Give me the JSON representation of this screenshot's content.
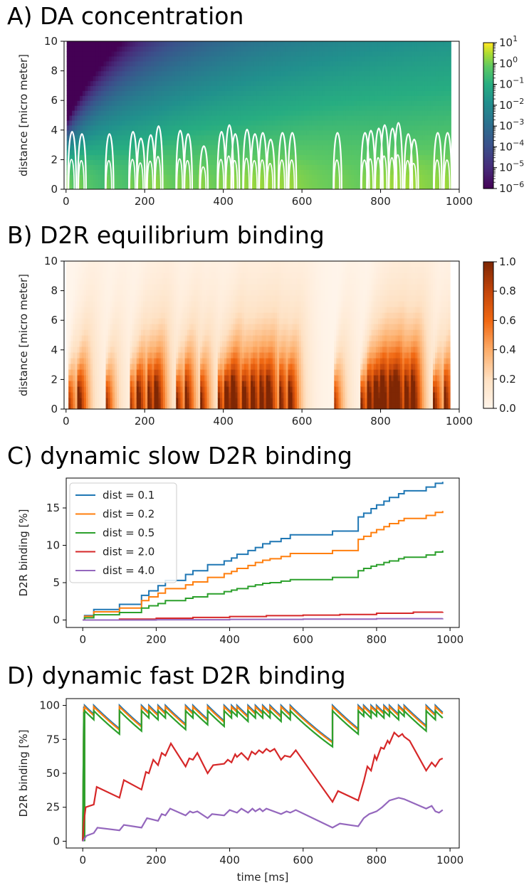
{
  "chart_data": [
    {
      "type": "heatmap",
      "title": "A) DA concentration",
      "xlabel": "",
      "ylabel": "distance [micro meter]",
      "xlim": [
        -5,
        1000
      ],
      "ylim": [
        0,
        10
      ],
      "x_ticks": [
        "0",
        "200",
        "400",
        "600",
        "800",
        "1000"
      ],
      "y_ticks": [
        "0",
        "2",
        "4",
        "6",
        "8",
        "10"
      ],
      "colormap": "viridis",
      "colorbar_scale": "log",
      "colorbar_ticks": [
        "10^1",
        "10^0",
        "10^-1",
        "10^-2",
        "10^-3",
        "10^-4",
        "10^-5",
        "10^-6"
      ],
      "contour_color": "#ffffff",
      "data_end": 980,
      "release_times": [
        5,
        30,
        100,
        160,
        180,
        205,
        225,
        280,
        300,
        340,
        385,
        405,
        420,
        450,
        470,
        490,
        510,
        540,
        565,
        680,
        750,
        765,
        785,
        800,
        820,
        835,
        860,
        875,
        935,
        960
      ],
      "contour_peaks": [
        4.9,
        4.7,
        4.7,
        4.9,
        4.3,
        4.6,
        5.4,
        5.0,
        4.7,
        3.6,
        4.9,
        5.5,
        4.7,
        5.1,
        4.7,
        4.8,
        4.2,
        4.8,
        4.8,
        4.8,
        4.8,
        5.0,
        5.2,
        5.5,
        5.2,
        5.7,
        4.7,
        4.2,
        4.8,
        4.8
      ]
    },
    {
      "type": "heatmap",
      "title": "B) D2R equilibrium binding",
      "xlabel": "",
      "ylabel": "distance [micro meter]",
      "xlim": [
        -5,
        1000
      ],
      "ylim": [
        0,
        10
      ],
      "x_ticks": [
        "0",
        "200",
        "400",
        "600",
        "800",
        "1000"
      ],
      "y_ticks": [
        "0",
        "2",
        "4",
        "6",
        "8",
        "10"
      ],
      "colormap": "oranges",
      "colorbar_range": [
        0.0,
        1.0
      ],
      "colorbar_ticks": [
        "0.0",
        "0.2",
        "0.4",
        "0.6",
        "0.8",
        "1.0"
      ],
      "data_end": 980
    },
    {
      "type": "line",
      "title": "C) dynamic slow D2R binding",
      "xlabel": "",
      "ylabel": "D2R binding [%]",
      "xlim": [
        -45,
        1025
      ],
      "ylim": [
        -1,
        19
      ],
      "x_ticks": [
        "0",
        "200",
        "400",
        "600",
        "800",
        "1000"
      ],
      "y_ticks": [
        "0",
        "5",
        "10",
        "15"
      ],
      "legend_position": "upper-left",
      "series": [
        {
          "name": "dist = 0.1",
          "color": "#1f77b4",
          "x": [
            0,
            5,
            30,
            100,
            160,
            180,
            205,
            225,
            280,
            300,
            340,
            385,
            405,
            420,
            450,
            470,
            490,
            510,
            540,
            565,
            680,
            750,
            765,
            785,
            800,
            820,
            835,
            860,
            875,
            935,
            960,
            980
          ],
          "y": [
            0,
            0.6,
            1.4,
            2.1,
            3.3,
            3.9,
            4.6,
            5.3,
            6.1,
            6.6,
            7.4,
            7.9,
            8.3,
            8.8,
            9.3,
            9.7,
            10.2,
            10.5,
            10.9,
            11.4,
            11.9,
            13.8,
            14.3,
            14.9,
            15.4,
            15.9,
            16.4,
            16.9,
            17.3,
            17.8,
            18.3,
            18.5
          ]
        },
        {
          "name": "dist = 0.2",
          "color": "#ff7f0e",
          "x": [
            0,
            5,
            30,
            100,
            160,
            180,
            205,
            225,
            280,
            300,
            340,
            385,
            405,
            420,
            450,
            470,
            490,
            510,
            540,
            565,
            680,
            750,
            765,
            785,
            800,
            820,
            835,
            860,
            875,
            935,
            960,
            980
          ],
          "y": [
            0,
            0.5,
            1.1,
            1.6,
            2.6,
            3.1,
            3.6,
            4.2,
            4.7,
            5.1,
            5.7,
            6.2,
            6.5,
            6.9,
            7.3,
            7.7,
            8.0,
            8.2,
            8.5,
            8.9,
            9.3,
            10.8,
            11.2,
            11.7,
            12.1,
            12.5,
            12.9,
            13.3,
            13.6,
            14.0,
            14.4,
            14.6
          ]
        },
        {
          "name": "dist = 0.5",
          "color": "#2ca02c",
          "x": [
            0,
            5,
            30,
            100,
            160,
            180,
            205,
            225,
            280,
            300,
            340,
            385,
            405,
            420,
            450,
            470,
            490,
            510,
            540,
            565,
            680,
            750,
            765,
            785,
            800,
            820,
            835,
            860,
            875,
            935,
            960,
            980
          ],
          "y": [
            0,
            0.3,
            0.7,
            1.0,
            1.6,
            1.9,
            2.2,
            2.6,
            2.9,
            3.1,
            3.5,
            3.8,
            4.0,
            4.2,
            4.5,
            4.7,
            4.9,
            5.0,
            5.2,
            5.4,
            5.7,
            6.6,
            6.9,
            7.2,
            7.4,
            7.7,
            7.9,
            8.2,
            8.4,
            8.7,
            9.1,
            9.3
          ]
        },
        {
          "name": "dist = 2.0",
          "color": "#d62728",
          "x": [
            0,
            100,
            200,
            300,
            400,
            500,
            600,
            700,
            800,
            900,
            980
          ],
          "y": [
            0,
            0.12,
            0.24,
            0.35,
            0.47,
            0.58,
            0.66,
            0.74,
            0.9,
            1.05,
            1.1
          ]
        },
        {
          "name": "dist = 4.0",
          "color": "#9467bd",
          "x": [
            0,
            200,
            400,
            600,
            800,
            980
          ],
          "y": [
            0,
            0.04,
            0.08,
            0.12,
            0.18,
            0.22
          ]
        }
      ]
    },
    {
      "type": "line",
      "title": "D) dynamic fast D2R binding",
      "xlabel": "time [ms]",
      "ylabel": "D2R binding [%]",
      "xlim": [
        -45,
        1025
      ],
      "ylim": [
        -5,
        105
      ],
      "x_ticks": [
        "0",
        "200",
        "400",
        "600",
        "800",
        "1000"
      ],
      "y_ticks": [
        "0",
        "25",
        "50",
        "75",
        "100"
      ],
      "release_times": [
        5,
        30,
        100,
        160,
        180,
        205,
        225,
        280,
        300,
        340,
        385,
        405,
        420,
        450,
        470,
        490,
        510,
        540,
        565,
        680,
        750,
        765,
        785,
        800,
        820,
        835,
        860,
        875,
        935,
        960
      ],
      "series": [
        {
          "name": "dist = 0.1",
          "color": "#1f77b4",
          "peak": 100,
          "start": 0,
          "tau": 130,
          "end": 94
        },
        {
          "name": "dist = 0.2",
          "color": "#ff7f0e",
          "peak": 99,
          "start": 0,
          "tau": 130,
          "end": 94
        },
        {
          "name": "dist = 0.5",
          "color": "#2ca02c",
          "peak": 96,
          "start": 0,
          "tau": 125,
          "end": 93
        },
        {
          "name": "dist = 2.0",
          "color": "#d62728",
          "x": [
            0,
            3,
            8,
            30,
            38,
            100,
            112,
            160,
            172,
            180,
            192,
            205,
            215,
            225,
            240,
            280,
            290,
            300,
            312,
            340,
            355,
            385,
            395,
            405,
            415,
            420,
            432,
            450,
            460,
            470,
            480,
            490,
            500,
            510,
            522,
            540,
            550,
            565,
            580,
            680,
            695,
            750,
            765,
            775,
            785,
            795,
            800,
            812,
            820,
            830,
            835,
            848,
            860,
            870,
            875,
            890,
            935,
            950,
            960,
            972,
            980
          ],
          "y": [
            0,
            14,
            25,
            27,
            40,
            32,
            45,
            38,
            51,
            50,
            60,
            56,
            65,
            63,
            72,
            55,
            61,
            60,
            65,
            50,
            56,
            57,
            60,
            58,
            64,
            62,
            65,
            60,
            66,
            64,
            67,
            65,
            68,
            66,
            68,
            60,
            63,
            62,
            67,
            29,
            37,
            30,
            44,
            55,
            52,
            63,
            60,
            69,
            68,
            74,
            72,
            80,
            77,
            79,
            77,
            74,
            52,
            58,
            55,
            60,
            61
          ]
        },
        {
          "name": "dist = 4.0",
          "color": "#9467bd",
          "x": [
            0,
            10,
            30,
            40,
            100,
            112,
            160,
            175,
            205,
            215,
            225,
            238,
            280,
            292,
            300,
            312,
            340,
            352,
            385,
            400,
            420,
            432,
            450,
            462,
            470,
            482,
            490,
            500,
            540,
            555,
            565,
            580,
            680,
            700,
            750,
            765,
            780,
            800,
            815,
            835,
            860,
            875,
            935,
            950,
            960,
            970,
            980
          ],
          "y": [
            0,
            4,
            6,
            10,
            8,
            12,
            10,
            17,
            15,
            20,
            19,
            24,
            19,
            22,
            21,
            22,
            17,
            20,
            19,
            23,
            21,
            24,
            21,
            24,
            22,
            24,
            22,
            24,
            20,
            22,
            21,
            23,
            10,
            13,
            11,
            17,
            20,
            22,
            25,
            30,
            32,
            31,
            24,
            26,
            22,
            21,
            23
          ]
        }
      ]
    }
  ]
}
